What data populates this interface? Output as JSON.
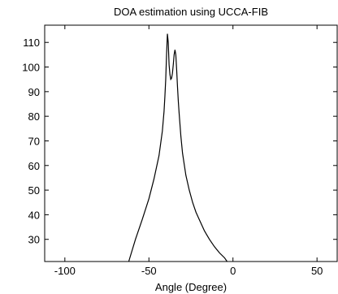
{
  "chart_data": {
    "type": "line",
    "title": "DOA estimation using UCCA-FIB",
    "xlabel": "Angle (Degree)",
    "ylabel": "",
    "xlim": [
      -112,
      62
    ],
    "ylim": [
      21,
      117
    ],
    "xticks": [
      -100,
      -50,
      0,
      50
    ],
    "yticks": [
      30,
      40,
      50,
      60,
      70,
      80,
      90,
      100,
      110
    ],
    "grid": false,
    "legend": "none",
    "series": [
      {
        "x": [
          -62,
          -58,
          -54,
          -50,
          -47,
          -44,
          -42,
          -41,
          -40.5,
          -40,
          -39.5,
          -39,
          -38.5,
          -38,
          -37.5,
          -37,
          -36.5,
          -36,
          -35.5,
          -35,
          -34.5,
          -34,
          -33.5,
          -33,
          -32.5,
          -32,
          -31,
          -30,
          -28,
          -26,
          -24,
          -22,
          -20,
          -17,
          -14,
          -11,
          -8,
          -5,
          -3.5
        ],
        "y": [
          21,
          30,
          38,
          46.5,
          54.5,
          64,
          74,
          82,
          88,
          95,
          105,
          113.5,
          110,
          101,
          97,
          95,
          95.5,
          97.5,
          101,
          105,
          107,
          105,
          99,
          92,
          86,
          81,
          72,
          65,
          56,
          50,
          45,
          41,
          38,
          33.5,
          30,
          27,
          24.5,
          22.5,
          21
        ]
      }
    ],
    "color": "#000000"
  }
}
